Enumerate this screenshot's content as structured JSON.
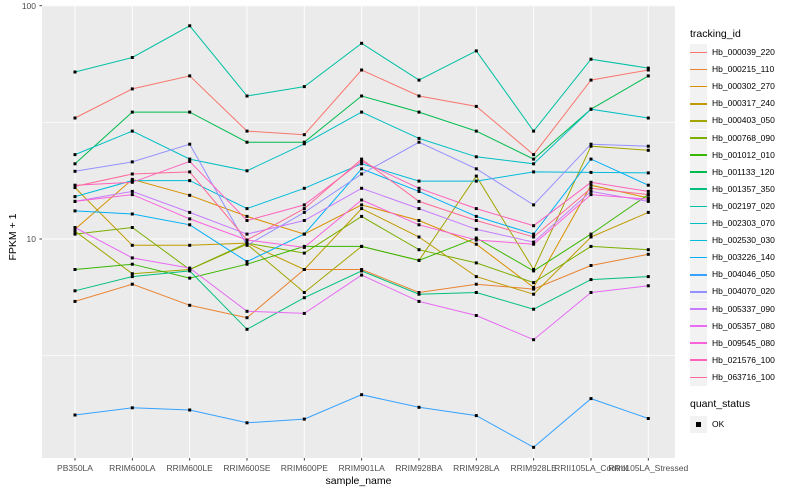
{
  "axes": {
    "x_label": "sample_name",
    "y_label": "FPKM + 1"
  },
  "legend": {
    "tracking_title": "tracking_id",
    "quant_title": "quant_status",
    "quant_ok_label": "OK"
  },
  "colors": {
    "panel_background": "#EBEBEB",
    "gridline": "#FFFFFF",
    "tick_label": "#4D4D4D",
    "point": "#000000",
    "legend_key_background": "#F2F2F2"
  },
  "chart_data": {
    "type": "line",
    "title": "",
    "xlabel": "sample_name",
    "ylabel": "FPKM + 1",
    "y_scale": "log10",
    "y_ticks": [
      100,
      10
    ],
    "y_minor_gridlines": [
      31.62,
      3.162
    ],
    "ylim": [
      1.15,
      103
    ],
    "grid": true,
    "legend_position": "right",
    "point_marker": "square",
    "quant_status_all_points": "OK",
    "x_categories": [
      "PB350LA",
      "RRIM600LA",
      "RRIM600LE",
      "RRIM600SE",
      "RRIM600PE",
      "RRIM901LA",
      "RRIM928BA",
      "RRIM928LA",
      "RRIM928LE",
      "RRII105LA_Control",
      "RRII105LA_Stressed"
    ],
    "series": [
      {
        "name": "Hb_000039_220",
        "color": "#F8766D",
        "values": [
          33,
          44,
          50,
          29,
          28,
          53,
          41,
          37,
          23,
          48,
          53
        ]
      },
      {
        "name": "Hb_000215_110",
        "color": "#EA8331",
        "values": [
          5.4,
          6.4,
          5.2,
          4.6,
          7.4,
          7.4,
          5.9,
          6.4,
          6.1,
          7.7,
          8.6
        ]
      },
      {
        "name": "Hb_000302_270",
        "color": "#D89000",
        "values": [
          11,
          18,
          15.4,
          12.5,
          10.5,
          14,
          12,
          9.5,
          6.2,
          17,
          15
        ]
      },
      {
        "name": "Hb_000317_240",
        "color": "#C09B00",
        "values": [
          16.6,
          9.4,
          9.4,
          9.6,
          7.4,
          13.5,
          10.2,
          6.9,
          5.8,
          10.2,
          13
        ]
      },
      {
        "name": "Hb_000403_050",
        "color": "#A3A500",
        "values": [
          10.8,
          7.1,
          7.4,
          9.5,
          5.9,
          9.3,
          8.1,
          18.6,
          7.4,
          25,
          24
        ]
      },
      {
        "name": "Hb_000768_090",
        "color": "#7CAE00",
        "values": [
          10.5,
          11.2,
          7.4,
          9.6,
          8.7,
          12.5,
          9,
          7.9,
          6.5,
          9.3,
          9
        ]
      },
      {
        "name": "Hb_001012_010",
        "color": "#39B600",
        "values": [
          7.4,
          7.8,
          6.8,
          7.8,
          9.3,
          9.3,
          8.1,
          10.1,
          7.3,
          10.5,
          15.5
        ]
      },
      {
        "name": "Hb_001133_120",
        "color": "#00BB4E",
        "values": [
          21,
          35,
          35,
          26,
          26,
          41,
          35,
          29,
          22,
          36,
          50
        ]
      },
      {
        "name": "Hb_001357_350",
        "color": "#00BF7D",
        "values": [
          6,
          6.9,
          7.3,
          4.1,
          5.6,
          7.3,
          5.8,
          5.9,
          5,
          6.7,
          6.9
        ]
      },
      {
        "name": "Hb_002197_020",
        "color": "#00C1A3",
        "values": [
          52,
          60,
          82,
          41,
          45,
          69,
          48,
          64,
          29,
          59,
          54
        ]
      },
      {
        "name": "Hb_002303_070",
        "color": "#00BFC4",
        "values": [
          23,
          29,
          22,
          19.6,
          25.6,
          35,
          27,
          22.5,
          21,
          36,
          33
        ]
      },
      {
        "name": "Hb_002530_030",
        "color": "#00BBDA",
        "values": [
          15.2,
          17.8,
          17.8,
          13.5,
          16.5,
          21,
          17.7,
          17.7,
          19.4,
          19.3,
          19.2
        ]
      },
      {
        "name": "Hb_003226_140",
        "color": "#00B0F6",
        "values": [
          13.2,
          12.8,
          11.5,
          8,
          10.5,
          20,
          16,
          12.5,
          10.5,
          22,
          17
        ]
      },
      {
        "name": "Hb_004046_050",
        "color": "#35A2FF",
        "values": [
          1.76,
          1.89,
          1.85,
          1.63,
          1.69,
          2.15,
          1.9,
          1.75,
          1.28,
          2.07,
          1.7
        ]
      },
      {
        "name": "Hb_004070_020",
        "color": "#9590FF",
        "values": [
          19.5,
          21.4,
          25.5,
          9.4,
          13,
          19,
          26,
          20,
          14,
          25.5,
          25
        ]
      },
      {
        "name": "Hb_005337_090",
        "color": "#C77CFF",
        "values": [
          14.5,
          16,
          13,
          10.5,
          12,
          16.5,
          13.5,
          11,
          9.7,
          16,
          14.5
        ]
      },
      {
        "name": "Hb_005357_080",
        "color": "#E76BF3",
        "values": [
          11.2,
          8.3,
          7.5,
          4.9,
          4.8,
          7,
          5.4,
          4.7,
          3.7,
          5.9,
          6.3
        ]
      },
      {
        "name": "Hb_009545_080",
        "color": "#FA62DB",
        "values": [
          14.5,
          15.5,
          12.2,
          9.9,
          9.2,
          14.7,
          11.5,
          9.9,
          9.5,
          15.5,
          14.8
        ]
      },
      {
        "name": "Hb_021576_100",
        "color": "#FF62BC",
        "values": [
          17,
          17.5,
          21.5,
          12,
          14,
          21.5,
          16.5,
          13.5,
          11.4,
          17.5,
          16
        ]
      },
      {
        "name": "Hb_063716_100",
        "color": "#FF6A98",
        "values": [
          16.8,
          19,
          19.4,
          9.9,
          13.5,
          22,
          14.5,
          12,
          10.2,
          16.5,
          15.5
        ]
      }
    ]
  }
}
